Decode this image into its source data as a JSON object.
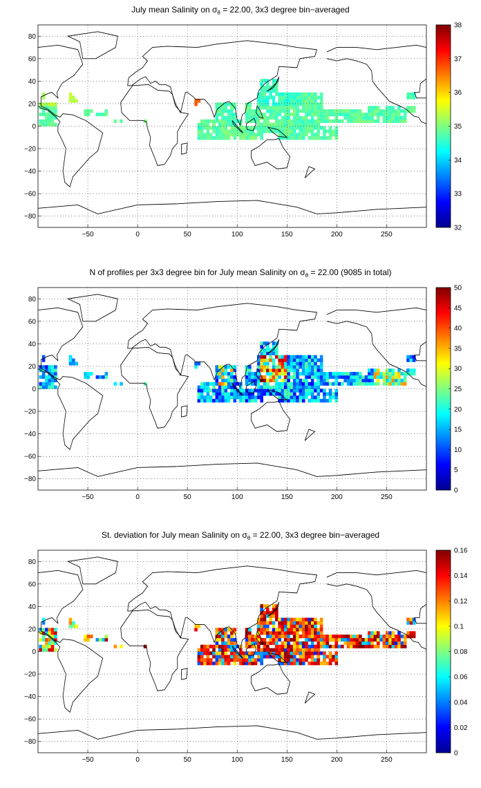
{
  "panels": [
    {
      "title_prefix": "July mean Salinity on ",
      "title_sym": "σ",
      "title_sub": "θ",
      "title_suffix": " = 22.00, 3x3 degree bin−averaged",
      "x_ticks": [
        "−50",
        "0",
        "50",
        "100",
        "150",
        "200",
        "250"
      ],
      "y_ticks": [
        "80",
        "60",
        "40",
        "20",
        "0",
        "−20",
        "−40",
        "−60",
        "−80"
      ],
      "colorbar": {
        "min": 32,
        "max": 38,
        "ticks": [
          "38",
          "37",
          "36",
          "35",
          "34",
          "33",
          "32"
        ]
      },
      "field": "salinity"
    },
    {
      "title_prefix": "N of profiles per 3x3 degree bin for July mean Salinity on ",
      "title_sym": "σ",
      "title_sub": "θ",
      "title_suffix": " = 22.00 (9085 in total)",
      "x_ticks": [
        "−50",
        "0",
        "50",
        "100",
        "150",
        "200",
        "250"
      ],
      "y_ticks": [
        "80",
        "60",
        "40",
        "20",
        "0",
        "−20",
        "−40",
        "−60",
        "−80"
      ],
      "colorbar": {
        "min": 0,
        "max": 50,
        "ticks": [
          "50",
          "45",
          "40",
          "35",
          "30",
          "25",
          "20",
          "15",
          "10",
          "5",
          "0"
        ]
      },
      "field": "count"
    },
    {
      "title_prefix": "St. deviation for July mean Salinity on ",
      "title_sym": "σ",
      "title_sub": "θ",
      "title_suffix": " = 22.00, 3x3 degree bin−averaged",
      "x_ticks": [
        "−50",
        "0",
        "50",
        "100",
        "150",
        "200",
        "250"
      ],
      "y_ticks": [
        "80",
        "60",
        "40",
        "20",
        "0",
        "−20",
        "−40",
        "−60",
        "−80"
      ],
      "colorbar": {
        "min": 0,
        "max": 0.16,
        "ticks": [
          "0.16",
          "0.14",
          "0.12",
          "0.1",
          "0.08",
          "0.06",
          "0.04",
          "0.02",
          "0"
        ]
      },
      "field": "stdev"
    }
  ],
  "map": {
    "lon_range": [
      -100,
      290
    ],
    "lat_range": [
      -90,
      90
    ],
    "grid": true,
    "colormap": "jet"
  }
}
